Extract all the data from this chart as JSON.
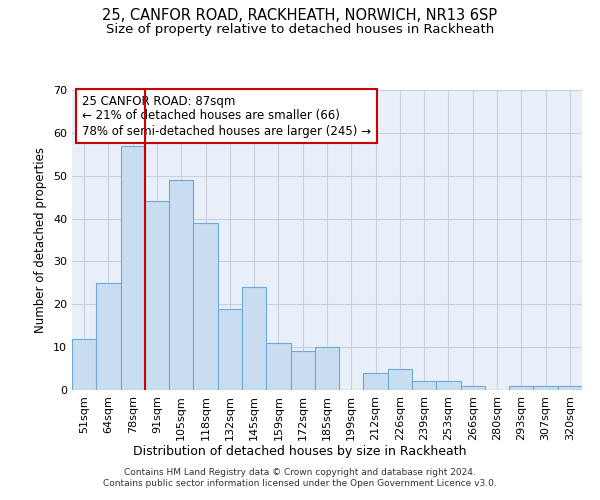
{
  "title": "25, CANFOR ROAD, RACKHEATH, NORWICH, NR13 6SP",
  "subtitle": "Size of property relative to detached houses in Rackheath",
  "xlabel": "Distribution of detached houses by size in Rackheath",
  "ylabel": "Number of detached properties",
  "categories": [
    "51sqm",
    "64sqm",
    "78sqm",
    "91sqm",
    "105sqm",
    "118sqm",
    "132sqm",
    "145sqm",
    "159sqm",
    "172sqm",
    "185sqm",
    "199sqm",
    "212sqm",
    "226sqm",
    "239sqm",
    "253sqm",
    "266sqm",
    "280sqm",
    "293sqm",
    "307sqm",
    "320sqm"
  ],
  "values": [
    12,
    25,
    57,
    44,
    49,
    39,
    19,
    24,
    11,
    9,
    10,
    0,
    4,
    5,
    2,
    2,
    1,
    0,
    1,
    1,
    1
  ],
  "bar_color": "#c9ddf0",
  "bar_edge_color": "#6aaad4",
  "vline_color": "#cc0000",
  "vline_index": 2,
  "annotation_text": "25 CANFOR ROAD: 87sqm\n← 21% of detached houses are smaller (66)\n78% of semi-detached houses are larger (245) →",
  "annotation_box_color": "#ffffff",
  "annotation_box_edge_color": "#cc0000",
  "footer_text": "Contains HM Land Registry data © Crown copyright and database right 2024.\nContains public sector information licensed under the Open Government Licence v3.0.",
  "bg_color": "#ffffff",
  "plot_bg_color": "#e8eff8",
  "grid_color": "#c8d0e0",
  "ylim": [
    0,
    70
  ],
  "yticks": [
    0,
    10,
    20,
    30,
    40,
    50,
    60,
    70
  ],
  "title_fontsize": 10.5,
  "subtitle_fontsize": 9.5,
  "xlabel_fontsize": 9,
  "ylabel_fontsize": 8.5,
  "tick_fontsize": 8,
  "annotation_fontsize": 8.5,
  "footer_fontsize": 6.5
}
